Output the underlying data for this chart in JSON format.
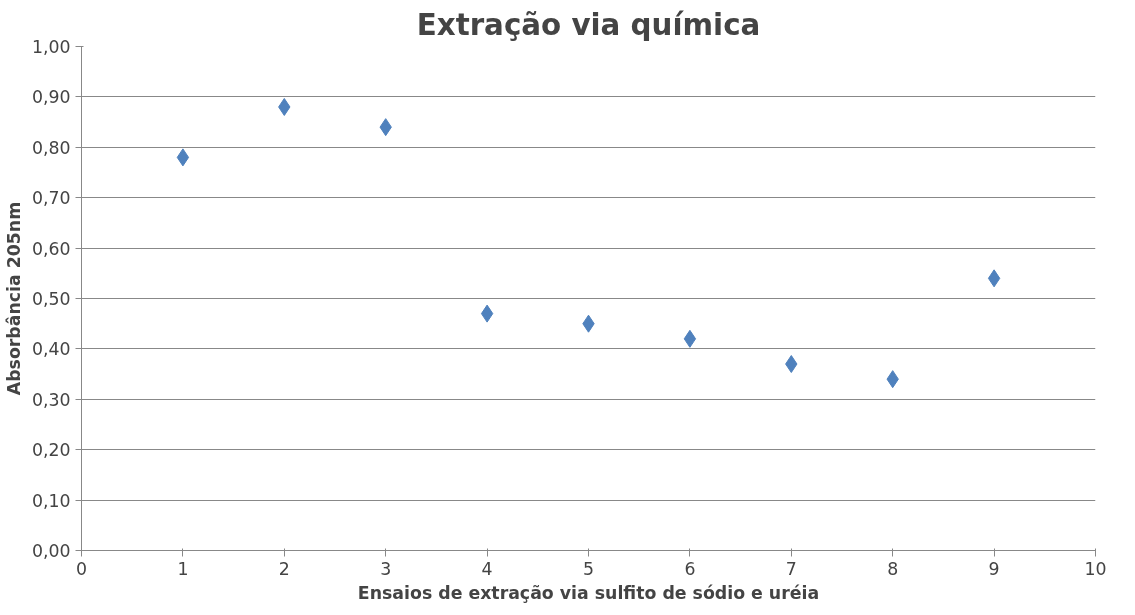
{
  "chart_data": {
    "type": "scatter",
    "title": "Extração via química",
    "xlabel": "Ensaios de extração via sulfito de sódio e uréia",
    "ylabel": "Absorbância 205nm",
    "x": [
      1,
      2,
      3,
      4,
      5,
      6,
      7,
      8,
      9
    ],
    "series": [
      {
        "color": "#4f81bd",
        "values": [
          0.78,
          0.88,
          0.84,
          0.47,
          0.45,
          0.42,
          0.37,
          0.34,
          0.54
        ]
      }
    ],
    "xlim": [
      0,
      10
    ],
    "xticks": [
      0,
      1,
      2,
      3,
      4,
      5,
      6,
      7,
      8,
      9,
      10
    ],
    "ylim": [
      0,
      1
    ],
    "yticks": [
      {
        "value": 0,
        "label": "0,00"
      },
      {
        "value": 0.1,
        "label": "0,10"
      },
      {
        "value": 0.2,
        "label": "0,20"
      },
      {
        "value": 0.3,
        "label": "0,30"
      },
      {
        "value": 0.4,
        "label": "0,40"
      },
      {
        "value": 0.5,
        "label": "0,50"
      },
      {
        "value": 0.6,
        "label": "0,60"
      },
      {
        "value": 0.7,
        "label": "0,70"
      },
      {
        "value": 0.8,
        "label": "0,80"
      },
      {
        "value": 0.9,
        "label": "0,90"
      },
      {
        "value": 1,
        "label": "1,00"
      }
    ],
    "grid": "y",
    "marker": "diamond"
  }
}
